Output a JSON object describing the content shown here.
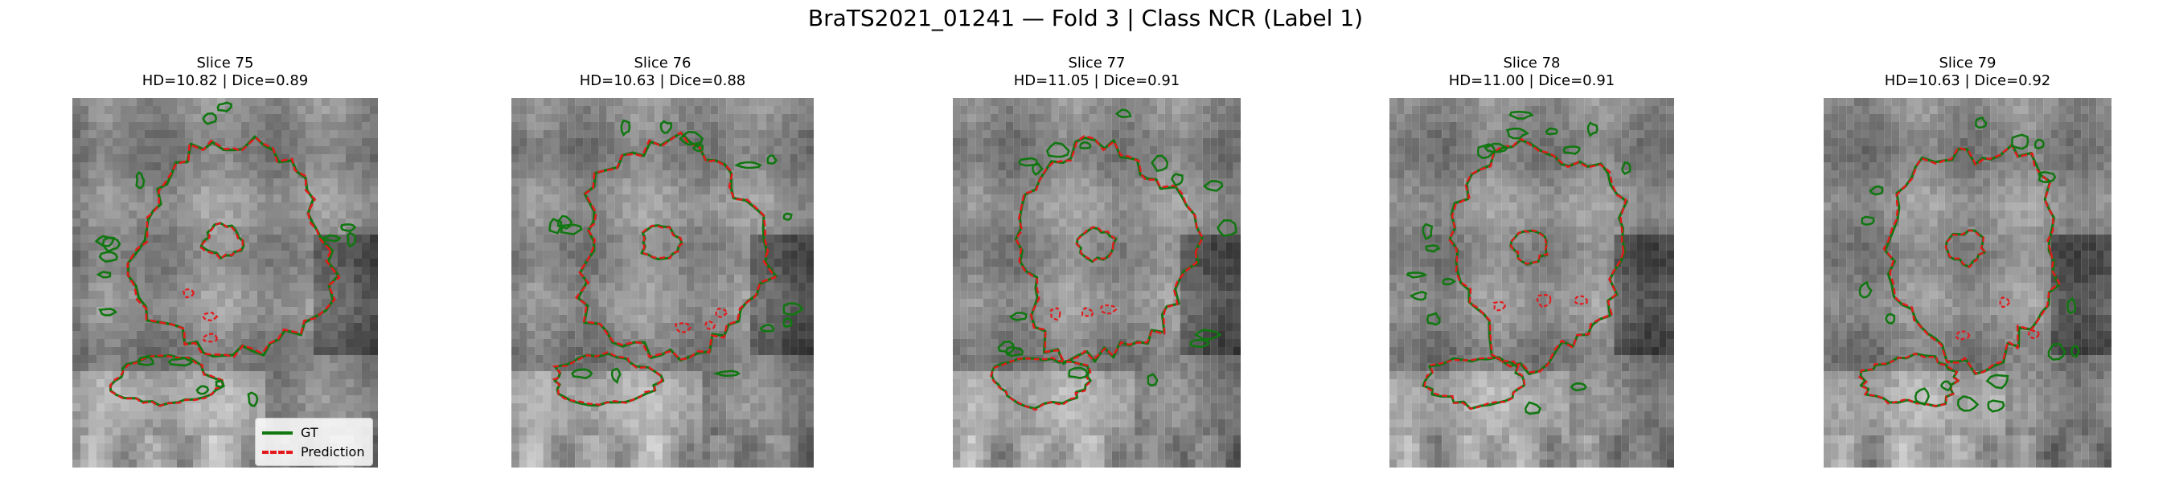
{
  "figure": {
    "title": "BraTS2021_01241 — Fold 3 | Class NCR (Label 1)"
  },
  "colors": {
    "gt": "#117711",
    "prediction": "#e31a1c",
    "background": "#ffffff"
  },
  "legend": {
    "gt_label": "GT",
    "prediction_label": "Prediction"
  },
  "panels": [
    {
      "slice": "Slice 75",
      "metrics": "HD=10.82 | Dice=0.89"
    },
    {
      "slice": "Slice 76",
      "metrics": "HD=10.63 | Dice=0.88"
    },
    {
      "slice": "Slice 77",
      "metrics": "HD=11.05 | Dice=0.91"
    },
    {
      "slice": "Slice 78",
      "metrics": "HD=11.00 | Dice=0.91"
    },
    {
      "slice": "Slice 79",
      "metrics": "HD=10.63 | Dice=0.92"
    }
  ]
}
